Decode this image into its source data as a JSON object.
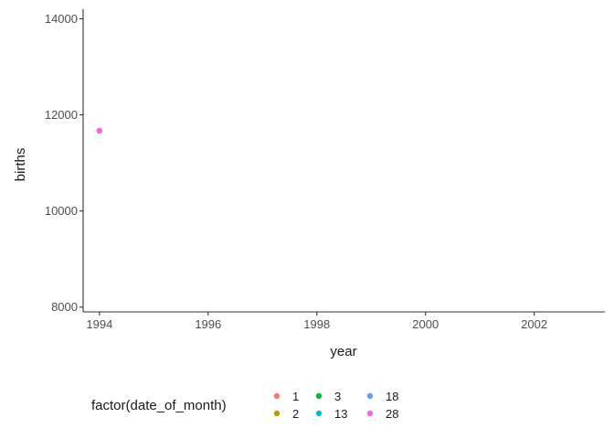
{
  "chart_data": {
    "type": "scatter",
    "title": "",
    "xlabel": "year",
    "ylabel": "births",
    "xlim": [
      1993.7,
      2003.3
    ],
    "ylim": [
      7900,
      14200
    ],
    "x_ticks": [
      "1994",
      "1996",
      "1998",
      "2000",
      "2002"
    ],
    "x_tick_values": [
      1994,
      1996,
      1998,
      2000,
      2002
    ],
    "y_ticks": [
      "8000",
      "10000",
      "12000",
      "14000"
    ],
    "y_tick_values": [
      8000,
      10000,
      12000,
      14000
    ],
    "grid": false,
    "legend": {
      "title": "factor(date_of_month)",
      "position": "bottom",
      "entries": [
        {
          "label": "1",
          "color": "#F8766D"
        },
        {
          "label": "2",
          "color": "#B79F00"
        },
        {
          "label": "3",
          "color": "#00BA38"
        },
        {
          "label": "13",
          "color": "#00BFC4"
        },
        {
          "label": "18",
          "color": "#619CFF"
        },
        {
          "label": "28",
          "color": "#F564E3"
        }
      ]
    },
    "series": [
      {
        "name": "28",
        "color": "#F564E3",
        "points": [
          {
            "x": 1994,
            "y": 11670
          }
        ]
      }
    ]
  }
}
